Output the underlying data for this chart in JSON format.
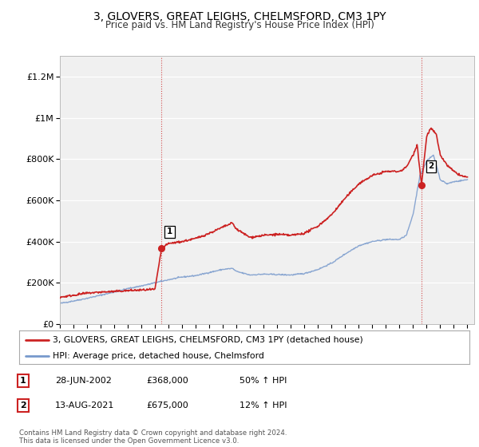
{
  "title": "3, GLOVERS, GREAT LEIGHS, CHELMSFORD, CM3 1PY",
  "subtitle": "Price paid vs. HM Land Registry's House Price Index (HPI)",
  "title_fontsize": 10,
  "subtitle_fontsize": 8.5,
  "ylabel_ticks": [
    "£0",
    "£200K",
    "£400K",
    "£600K",
    "£800K",
    "£1M",
    "£1.2M"
  ],
  "ytick_values": [
    0,
    200000,
    400000,
    600000,
    800000,
    1000000,
    1200000
  ],
  "ylim": [
    0,
    1300000
  ],
  "xlim_start": 1995.0,
  "xlim_end": 2025.5,
  "background_color": "#ffffff",
  "plot_bg_color": "#f0f0f0",
  "grid_color": "#ffffff",
  "red_color": "#cc2222",
  "blue_color": "#7799cc",
  "marker1_x": 2002.49,
  "marker1_y": 368000,
  "marker2_x": 2021.62,
  "marker2_y": 675000,
  "legend_label_red": "3, GLOVERS, GREAT LEIGHS, CHELMSFORD, CM3 1PY (detached house)",
  "legend_label_blue": "HPI: Average price, detached house, Chelmsford",
  "annot1_label": "1",
  "annot1_date": "28-JUN-2002",
  "annot1_price": "£368,000",
  "annot1_hpi": "50% ↑ HPI",
  "annot2_label": "2",
  "annot2_date": "13-AUG-2021",
  "annot2_price": "£675,000",
  "annot2_hpi": "12% ↑ HPI",
  "footer": "Contains HM Land Registry data © Crown copyright and database right 2024.\nThis data is licensed under the Open Government Licence v3.0."
}
